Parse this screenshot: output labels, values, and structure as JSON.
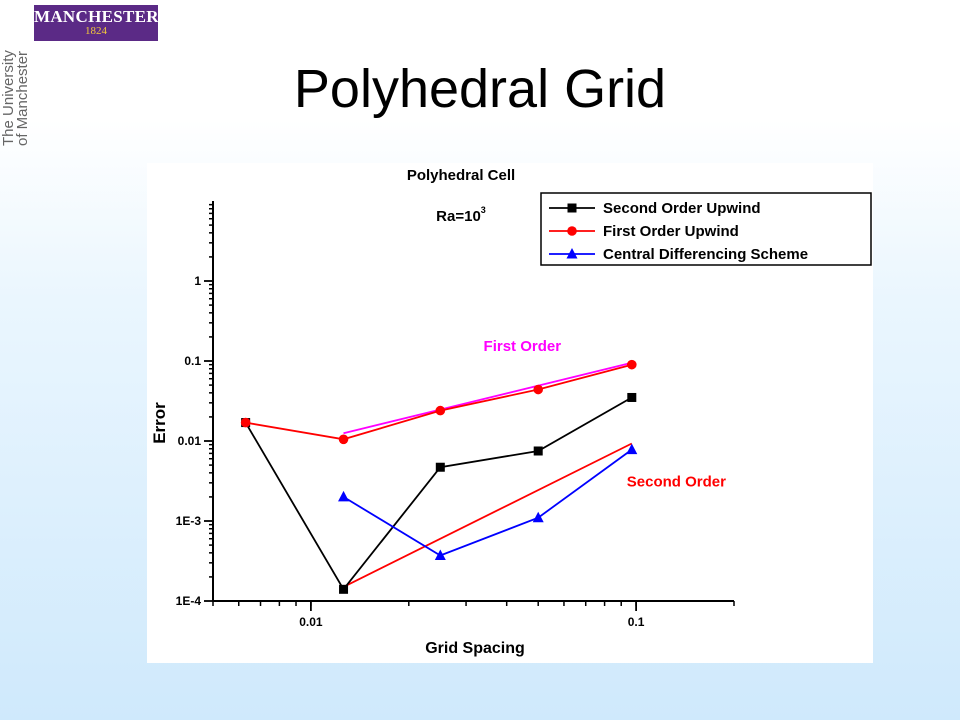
{
  "slide": {
    "logo_name": "MANCHESTER",
    "logo_year": "1824",
    "side_text_line1": "The University",
    "side_text_line2": "of Manchester",
    "title": "Polyhedral Grid"
  },
  "chart_data": {
    "type": "line",
    "title": "Polyhedral Cell",
    "subtitle_base": "Ra=10",
    "subtitle_exp": "3",
    "xlabel": "Grid Spacing",
    "ylabel": "Error",
    "x_scale": "log",
    "y_scale": "log",
    "xlim": [
      0.005,
      0.2
    ],
    "ylim": [
      0.0001,
      10
    ],
    "x_ticks": [
      {
        "value": 0.01,
        "label": "0.01"
      },
      {
        "value": 0.1,
        "label": "0.1"
      }
    ],
    "y_ticks": [
      {
        "value": 0.0001,
        "label": "1E-4"
      },
      {
        "value": 0.001,
        "label": "1E-3"
      },
      {
        "value": 0.01,
        "label": "0.01"
      },
      {
        "value": 0.1,
        "label": "0.1"
      },
      {
        "value": 1,
        "label": "1"
      }
    ],
    "legend_position": "top-right",
    "series": [
      {
        "name": "Second Order Upwind",
        "color": "#000000",
        "marker": "square",
        "x": [
          0.0063,
          0.0126,
          0.025,
          0.05,
          0.097
        ],
        "y": [
          0.017,
          0.00014,
          0.0047,
          0.0075,
          0.035
        ]
      },
      {
        "name": "First Order Upwind",
        "color": "#ff0000",
        "marker": "circle",
        "x": [
          0.0063,
          0.0126,
          0.025,
          0.05,
          0.097
        ],
        "y": [
          0.017,
          0.0105,
          0.024,
          0.044,
          0.09
        ]
      },
      {
        "name": "Central Differencing Scheme",
        "color": "#0000ff",
        "marker": "triangle",
        "x": [
          0.0126,
          0.025,
          0.05,
          0.097
        ],
        "y": [
          0.002,
          0.00037,
          0.0011,
          0.0078
        ]
      }
    ],
    "reference_lines": [
      {
        "label": "First Order",
        "color": "#ff00ff",
        "x": [
          0.0126,
          0.097
        ],
        "y": [
          0.0125,
          0.095
        ]
      },
      {
        "label": "Second Order",
        "color": "#ff0000",
        "x": [
          0.0126,
          0.097
        ],
        "y": [
          0.00015,
          0.0093
        ]
      }
    ]
  }
}
